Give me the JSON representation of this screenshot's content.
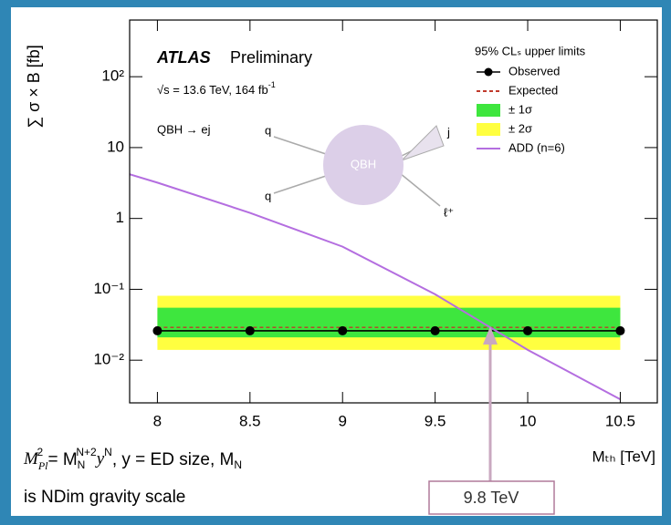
{
  "chart_data": {
    "type": "line",
    "experiment": "ATLAS",
    "status": "Preliminary",
    "energy": "√s = 13.6 TeV, 164 fb",
    "energy_sup": "-1",
    "process": "QBH → ej",
    "diagram": {
      "center": "QBH",
      "in1": "q",
      "in2": "q",
      "out1": "j",
      "out2": "ℓ⁺"
    },
    "legend_title": "95% CLₛ upper limits",
    "xlabel": "Mₜₕ [TeV]",
    "ylabel": "∑ σ × B [fb]",
    "xlim": [
      7.85,
      10.7
    ],
    "ylim": [
      0.0025,
      630
    ],
    "log_y": true,
    "grid": false,
    "legend": "upper right",
    "xticks": [
      8,
      8.5,
      9,
      9.5,
      10,
      10.5
    ],
    "yticks": [
      {
        "value": 0.01,
        "label": "10⁻²"
      },
      {
        "value": 0.1,
        "label": "10⁻¹"
      },
      1,
      10,
      {
        "value": 100,
        "label": "10²"
      }
    ],
    "series": [
      {
        "name": "Observed",
        "color": "#000000",
        "x": [
          8,
          8.5,
          9,
          9.5,
          10,
          10.5
        ],
        "values": [
          0.026,
          0.026,
          0.026,
          0.026,
          0.026,
          0.026
        ]
      },
      {
        "name": "Expected",
        "color": "#c0392b",
        "x": [
          8,
          10.5
        ],
        "values": [
          0.029,
          0.029
        ]
      },
      {
        "name": "± 1σ",
        "color": "#3ee63e",
        "x": [
          8,
          10.5
        ],
        "lower": [
          0.021,
          0.021
        ],
        "upper": [
          0.055,
          0.055
        ]
      },
      {
        "name": "± 2σ",
        "color": "#ffff40",
        "x": [
          8,
          10.5
        ],
        "lower": [
          0.014,
          0.014
        ],
        "upper": [
          0.081,
          0.081
        ]
      },
      {
        "name": "ADD (n=6)",
        "color": "#b46ee0",
        "x": [
          7.85,
          8,
          8.5,
          9,
          9.5,
          10,
          10.5
        ],
        "values": [
          4.2,
          3.2,
          1.2,
          0.4,
          0.085,
          0.014,
          0.0028
        ]
      }
    ],
    "note": {
      "parts": [
        "M",
        "Pl",
        "2",
        " = M",
        "N",
        "N+2",
        "y",
        "N",
        ", y = ED size, M",
        "N"
      ],
      "line2": "is NDim gravity scale"
    },
    "callout": "9.8 TeV"
  }
}
